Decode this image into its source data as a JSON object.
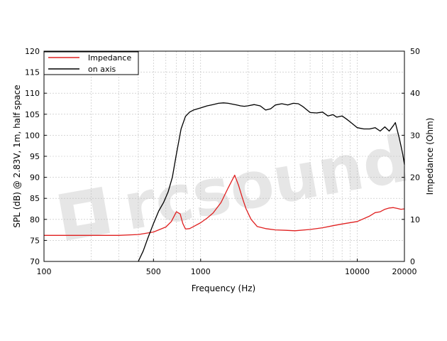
{
  "chart_data": {
    "type": "line",
    "xlabel": "Frequency (Hz)",
    "ylabel_left": "SPL (dB) @ 2.83V, 1m, half space",
    "ylabel_right": "Impedance (Ohm)",
    "x_scale": "log",
    "xlim": [
      100,
      20000
    ],
    "ylim_left": [
      70,
      120
    ],
    "ylim_right": [
      0,
      50
    ],
    "x_ticks": [
      100,
      500,
      1000,
      10000,
      20000
    ],
    "x_tick_labels": [
      "100",
      "500",
      "1000",
      "10000",
      "20000"
    ],
    "y_left_ticks": [
      "70",
      "75",
      "80",
      "85",
      "90",
      "95",
      "100",
      "105",
      "110",
      "115",
      "120"
    ],
    "y_right_ticks": [
      "0",
      "10",
      "20",
      "30",
      "40",
      "50"
    ],
    "grid": true,
    "legend_position": "top-left",
    "watermark_text": "rcsound",
    "series": [
      {
        "name": "Impedance",
        "axis": "right",
        "color": "#e02020",
        "x": [
          100,
          200,
          300,
          400,
          500,
          600,
          650,
          700,
          740,
          770,
          800,
          850,
          900,
          1000,
          1100,
          1200,
          1350,
          1500,
          1650,
          1750,
          1850,
          1950,
          2100,
          2300,
          2600,
          3000,
          3500,
          4000,
          5000,
          6000,
          7000,
          8000,
          10000,
          12000,
          13000,
          14000,
          15000,
          16000,
          17000,
          18000,
          19000,
          20000
        ],
        "y": [
          6.2,
          6.2,
          6.2,
          6.4,
          7.0,
          8.2,
          9.5,
          11.8,
          11.3,
          9.0,
          7.7,
          7.8,
          8.3,
          9.2,
          10.3,
          11.5,
          14.0,
          17.5,
          20.5,
          18.0,
          15.0,
          12.5,
          10.0,
          8.3,
          7.8,
          7.5,
          7.4,
          7.3,
          7.6,
          8.0,
          8.5,
          8.9,
          9.5,
          10.8,
          11.6,
          11.8,
          12.4,
          12.7,
          12.8,
          12.6,
          12.4,
          12.5
        ]
      },
      {
        "name": "on axis",
        "axis": "left",
        "color": "#000000",
        "x": [
          400,
          430,
          460,
          500,
          540,
          580,
          620,
          660,
          700,
          750,
          800,
          850,
          900,
          1000,
          1100,
          1200,
          1300,
          1400,
          1500,
          1600,
          1700,
          1800,
          1900,
          2000,
          2200,
          2400,
          2600,
          2800,
          3000,
          3300,
          3600,
          3900,
          4200,
          4500,
          5000,
          5500,
          6000,
          6500,
          7000,
          7400,
          8000,
          8500,
          9000,
          10000,
          11000,
          12000,
          13000,
          14000,
          15000,
          16000,
          17000,
          17500,
          18000,
          18500,
          19000,
          19500,
          20000
        ],
        "y": [
          70.0,
          72.5,
          75.5,
          79.0,
          82.0,
          84.0,
          86.5,
          90.0,
          95.5,
          101.5,
          104.5,
          105.5,
          106.0,
          106.5,
          107.0,
          107.3,
          107.6,
          107.7,
          107.6,
          107.4,
          107.2,
          107.0,
          106.9,
          107.0,
          107.3,
          107.0,
          106.0,
          106.3,
          107.2,
          107.5,
          107.2,
          107.6,
          107.5,
          106.8,
          105.4,
          105.3,
          105.5,
          104.6,
          104.9,
          104.3,
          104.6,
          103.9,
          103.2,
          101.8,
          101.5,
          101.5,
          101.8,
          101.0,
          102.0,
          101.0,
          102.3,
          103.0,
          101.2,
          99.5,
          97.5,
          95.5,
          93.0
        ]
      }
    ]
  }
}
